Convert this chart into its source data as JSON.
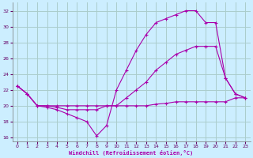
{
  "xlabel": "Windchill (Refroidissement éolien,°C)",
  "background_color": "#cceeff",
  "grid_color": "#aacccc",
  "line_color": "#aa00aa",
  "xlim": [
    -0.5,
    23.5
  ],
  "ylim": [
    15.5,
    33.0
  ],
  "yticks": [
    16,
    18,
    20,
    22,
    24,
    26,
    28,
    30,
    32
  ],
  "xticks": [
    0,
    1,
    2,
    3,
    4,
    5,
    6,
    7,
    8,
    9,
    10,
    11,
    12,
    13,
    14,
    15,
    16,
    17,
    18,
    19,
    20,
    21,
    22,
    23
  ],
  "series": [
    {
      "x": [
        0,
        1,
        2,
        3,
        4,
        5,
        6,
        7,
        8,
        9,
        10,
        11,
        12,
        13,
        14,
        15,
        16,
        17,
        18,
        19,
        20,
        21,
        22,
        23
      ],
      "y": [
        22.5,
        21.5,
        20.0,
        19.8,
        19.5,
        19.0,
        18.5,
        18.0,
        16.2,
        17.5,
        22.0,
        24.5,
        27.0,
        29.0,
        30.5,
        31.0,
        31.5,
        32.0,
        32.0,
        30.5,
        30.5,
        23.5,
        21.5,
        21.0
      ]
    },
    {
      "x": [
        0,
        1,
        2,
        3,
        4,
        5,
        6,
        7,
        8,
        9,
        10,
        11,
        12,
        13,
        14,
        15,
        16,
        17,
        18,
        19,
        20,
        21,
        22,
        23
      ],
      "y": [
        22.5,
        21.5,
        20.0,
        20.0,
        19.8,
        19.5,
        19.5,
        19.5,
        19.5,
        20.0,
        20.0,
        20.0,
        20.0,
        20.0,
        20.2,
        20.3,
        20.5,
        20.5,
        20.5,
        20.5,
        20.5,
        20.5,
        21.0,
        21.0
      ]
    },
    {
      "x": [
        0,
        1,
        2,
        3,
        4,
        5,
        6,
        7,
        8,
        9,
        10,
        11,
        12,
        13,
        14,
        15,
        16,
        17,
        18,
        19,
        20,
        21,
        22,
        23
      ],
      "y": [
        22.5,
        21.5,
        20.0,
        20.0,
        20.0,
        20.0,
        20.0,
        20.0,
        20.0,
        20.0,
        20.0,
        21.0,
        22.0,
        23.0,
        24.5,
        25.5,
        26.5,
        27.0,
        27.5,
        27.5,
        27.5,
        23.5,
        21.5,
        21.0
      ]
    }
  ]
}
